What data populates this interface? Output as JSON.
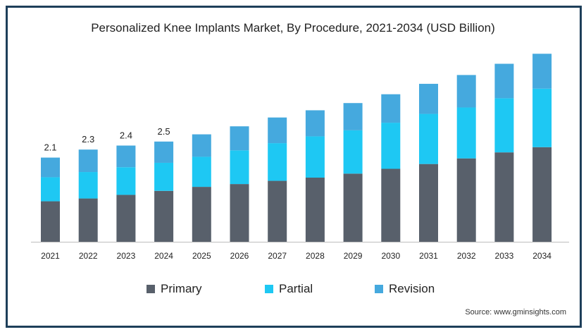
{
  "chart_data": {
    "type": "bar",
    "stacked": true,
    "title": "Personalized Knee Implants Market, By Procedure, 2021-2034 (USD Billion)",
    "categories": [
      "2021",
      "2022",
      "2023",
      "2024",
      "2025",
      "2026",
      "2027",
      "2028",
      "2029",
      "2030",
      "2031",
      "2032",
      "2033",
      "2034"
    ],
    "series": [
      {
        "name": "Primary",
        "color": "#58606b",
        "values": [
          1.01,
          1.08,
          1.17,
          1.27,
          1.37,
          1.44,
          1.52,
          1.6,
          1.7,
          1.82,
          1.94,
          2.08,
          2.23,
          2.36
        ]
      },
      {
        "name": "Partial",
        "color": "#1ec8f3",
        "values": [
          0.6,
          0.66,
          0.69,
          0.7,
          0.75,
          0.84,
          0.94,
          1.03,
          1.08,
          1.15,
          1.25,
          1.27,
          1.35,
          1.46
        ]
      },
      {
        "name": "Revision",
        "color": "#45a9de",
        "values": [
          0.49,
          0.56,
          0.54,
          0.53,
          0.56,
          0.6,
          0.64,
          0.65,
          0.68,
          0.71,
          0.75,
          0.81,
          0.86,
          0.87
        ]
      }
    ],
    "data_labels": [
      {
        "category": "2021",
        "text": "2.1"
      },
      {
        "category": "2022",
        "text": "2.3"
      },
      {
        "category": "2023",
        "text": "2.4"
      },
      {
        "category": "2024",
        "text": "2.5"
      }
    ],
    "ylim": [
      0,
      4.8
    ],
    "grid": false,
    "legend_position": "bottom",
    "xlabel": "",
    "ylabel": ""
  },
  "source": "Source: www.gminsights.com"
}
